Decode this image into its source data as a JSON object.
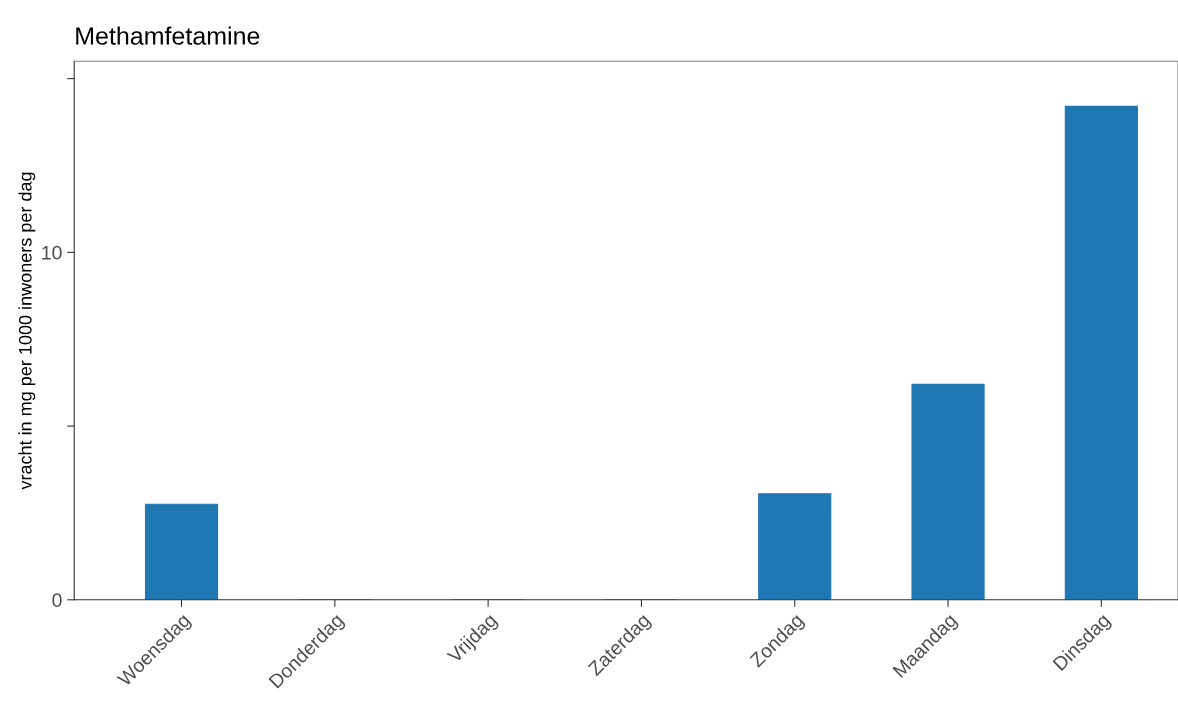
{
  "chart_data": {
    "type": "bar",
    "title": "Methamfetamine",
    "ylabel": "vracht in mg per 1000 inwoners per dag",
    "categories": [
      "Woensdag",
      "Donderdag",
      "Vrijdag",
      "Zaterdag",
      "Zondag",
      "Maandag",
      "Dinsdag"
    ],
    "values": [
      2.75,
      0,
      0,
      0,
      3.05,
      6.2,
      14.2
    ],
    "color": "#1f77b4",
    "ylim": [
      0,
      15.5
    ],
    "yticks": [
      0,
      {
        "value": 5,
        "label": null
      },
      10,
      {
        "value": 15,
        "label": null
      }
    ],
    "grid": false
  }
}
